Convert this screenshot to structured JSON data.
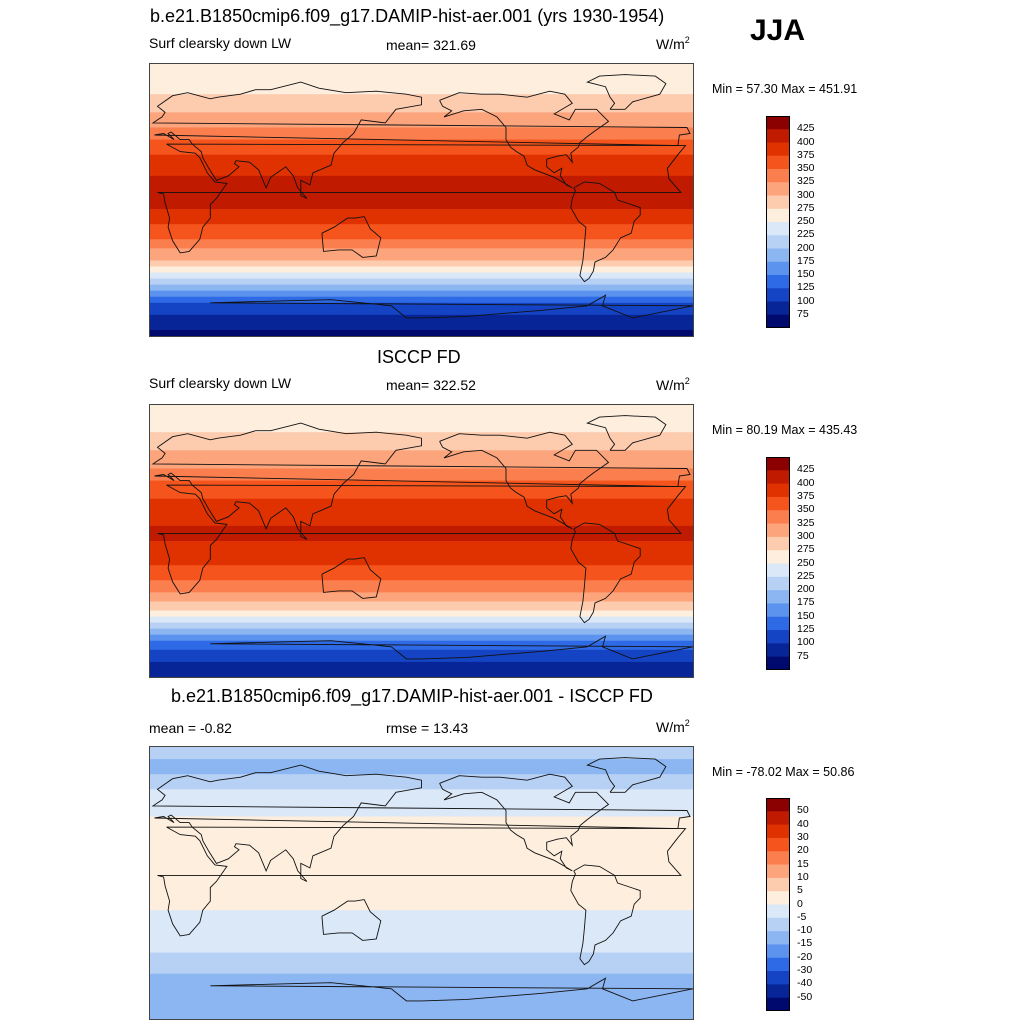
{
  "season": "JJA",
  "chart_data": [
    {
      "type": "heatmap",
      "title": "b.e21.B1850cmip6.f09_g17.DAMIP-hist-aer.001 (yrs 1930-1954)",
      "left_label": "Surf clearsky down LW",
      "center_label": "mean= 321.69",
      "unit": "W/m",
      "unit_sup": "2",
      "minmax": "Min =  57.30 Max = 451.91",
      "mean": 321.69,
      "min": 57.3,
      "max": 451.91,
      "x_range": [
        -180,
        180
      ],
      "y_range": [
        -90,
        90
      ],
      "levels": [
        "425",
        "400",
        "375",
        "350",
        "325",
        "300",
        "275",
        "250",
        "225",
        "200",
        "175",
        "150",
        "125",
        "100",
        "75"
      ],
      "level_values": [
        425,
        400,
        375,
        350,
        325,
        300,
        275,
        250,
        225,
        200,
        175,
        150,
        125,
        100,
        75
      ],
      "colors": [
        "#8b0000",
        "#c01a00",
        "#e03200",
        "#f5551c",
        "#fb7e4e",
        "#fca47c",
        "#fdcbae",
        "#fdeedd",
        "#dbe8f8",
        "#b7d1f5",
        "#8cb6f2",
        "#5b93ee",
        "#2e6ae6",
        "#1443c4",
        "#082597",
        "#000a6e"
      ],
      "zonal_profile": [
        {
          "lat": 90,
          "value": 250
        },
        {
          "lat": 75,
          "value": 262
        },
        {
          "lat": 65,
          "value": 285
        },
        {
          "lat": 50,
          "value": 320
        },
        {
          "lat": 35,
          "value": 365
        },
        {
          "lat": 20,
          "value": 395
        },
        {
          "lat": 5,
          "value": 410
        },
        {
          "lat": -10,
          "value": 395
        },
        {
          "lat": -25,
          "value": 350
        },
        {
          "lat": -40,
          "value": 300
        },
        {
          "lat": -50,
          "value": 240
        },
        {
          "lat": -60,
          "value": 175
        },
        {
          "lat": -70,
          "value": 115
        },
        {
          "lat": -80,
          "value": 85
        },
        {
          "lat": -90,
          "value": 70
        }
      ]
    },
    {
      "type": "heatmap",
      "title": "ISCCP FD",
      "left_label": "Surf clearsky down LW",
      "center_label": "mean= 322.52",
      "unit": "W/m",
      "unit_sup": "2",
      "minmax": "Min =  80.19 Max = 435.43",
      "mean": 322.52,
      "min": 80.19,
      "max": 435.43,
      "x_range": [
        -180,
        180
      ],
      "y_range": [
        -90,
        90
      ],
      "levels": [
        "425",
        "400",
        "375",
        "350",
        "325",
        "300",
        "275",
        "250",
        "225",
        "200",
        "175",
        "150",
        "125",
        "100",
        "75"
      ],
      "level_values": [
        425,
        400,
        375,
        350,
        325,
        300,
        275,
        250,
        225,
        200,
        175,
        150,
        125,
        100,
        75
      ],
      "colors": [
        "#8b0000",
        "#c01a00",
        "#e03200",
        "#f5551c",
        "#fb7e4e",
        "#fca47c",
        "#fdcbae",
        "#fdeedd",
        "#dbe8f8",
        "#b7d1f5",
        "#8cb6f2",
        "#5b93ee",
        "#2e6ae6",
        "#1443c4",
        "#082597",
        "#000a6e"
      ],
      "zonal_profile": [
        {
          "lat": 90,
          "value": 255
        },
        {
          "lat": 75,
          "value": 270
        },
        {
          "lat": 65,
          "value": 290
        },
        {
          "lat": 50,
          "value": 322
        },
        {
          "lat": 35,
          "value": 362
        },
        {
          "lat": 20,
          "value": 392
        },
        {
          "lat": 5,
          "value": 405
        },
        {
          "lat": -10,
          "value": 392
        },
        {
          "lat": -25,
          "value": 352
        },
        {
          "lat": -40,
          "value": 305
        },
        {
          "lat": -50,
          "value": 250
        },
        {
          "lat": -60,
          "value": 185
        },
        {
          "lat": -70,
          "value": 130
        },
        {
          "lat": -80,
          "value": 100
        },
        {
          "lat": -90,
          "value": 85
        }
      ]
    },
    {
      "type": "heatmap",
      "title": "b.e21.B1850cmip6.f09_g17.DAMIP-hist-aer.001 - ISCCP FD",
      "left_label": "mean =  -0.82",
      "center_label": "rmse =  13.43",
      "unit": "W/m",
      "unit_sup": "2",
      "minmax": "Min = -78.02 Max =  50.86",
      "mean": -0.82,
      "rmse": 13.43,
      "min": -78.02,
      "max": 50.86,
      "x_range": [
        -180,
        180
      ],
      "y_range": [
        -90,
        90
      ],
      "levels": [
        "50",
        "40",
        "30",
        "20",
        "15",
        "10",
        "5",
        "0",
        "-5",
        "-10",
        "-15",
        "-20",
        "-30",
        "-40",
        "-50"
      ],
      "level_values": [
        50,
        40,
        30,
        20,
        15,
        10,
        5,
        0,
        -5,
        -10,
        -15,
        -20,
        -30,
        -40,
        -50
      ],
      "colors": [
        "#8b0000",
        "#c01a00",
        "#e03200",
        "#f5551c",
        "#fb7e4e",
        "#fca47c",
        "#fdcbae",
        "#fdeedd",
        "#dbe8f8",
        "#b7d1f5",
        "#8cb6f2",
        "#5b93ee",
        "#2e6ae6",
        "#1443c4",
        "#082597",
        "#000a6e"
      ],
      "zonal_profile": [
        {
          "lat": 90,
          "value": -8
        },
        {
          "lat": 75,
          "value": -12
        },
        {
          "lat": 65,
          "value": -6
        },
        {
          "lat": 50,
          "value": -2
        },
        {
          "lat": 35,
          "value": 3
        },
        {
          "lat": 20,
          "value": 2
        },
        {
          "lat": 5,
          "value": 4
        },
        {
          "lat": -10,
          "value": 1
        },
        {
          "lat": -25,
          "value": -1
        },
        {
          "lat": -40,
          "value": -3
        },
        {
          "lat": -50,
          "value": -7
        },
        {
          "lat": -60,
          "value": -10
        },
        {
          "lat": -70,
          "value": -15
        },
        {
          "lat": -80,
          "value": -12
        },
        {
          "lat": -90,
          "value": -14
        }
      ]
    }
  ]
}
